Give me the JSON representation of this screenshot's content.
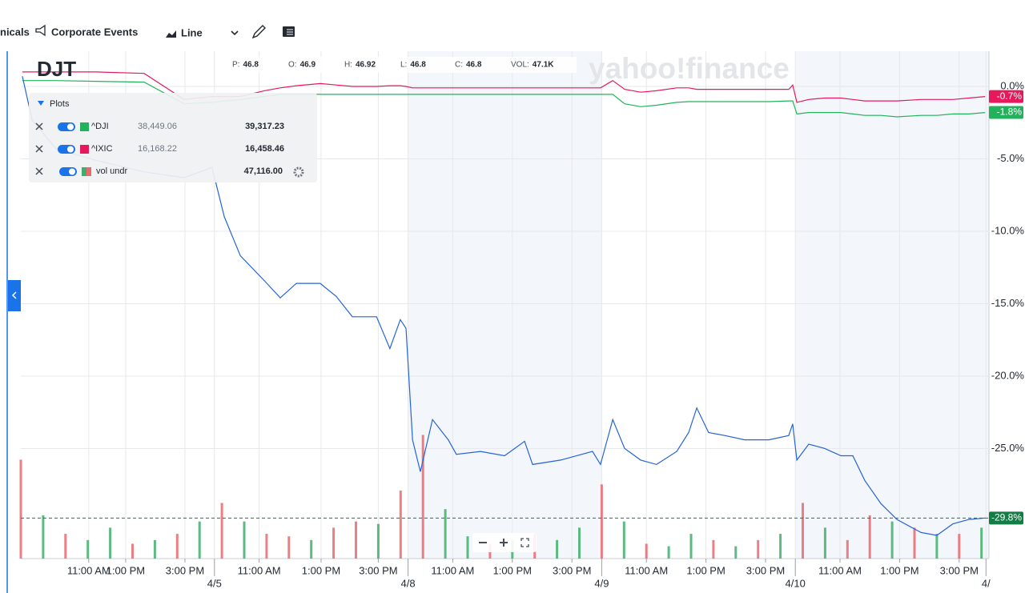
{
  "toolbar": {
    "technicals": "nicals",
    "events": "Corporate Events",
    "chart_type": "Line"
  },
  "quote": [
    {
      "label": "P:",
      "value": "46.8"
    },
    {
      "label": "O:",
      "value": "46.9"
    },
    {
      "label": "H:",
      "value": "46.92"
    },
    {
      "label": "L:",
      "value": "46.8"
    },
    {
      "label": "C:",
      "value": "46.8"
    },
    {
      "label": "VOL:",
      "value": "47.1K"
    }
  ],
  "watermark": "yahoo!finance",
  "legend": {
    "title": "Plots",
    "rows": [
      {
        "prev": "38,449.06",
        "last": "39,317.23"
      },
      {
        "prev": "16,168.22",
        "last": "16,458.46"
      },
      {
        "name": "vol undr",
        "last": "47,116.00"
      }
    ]
  },
  "chart_data": {
    "type": "line",
    "x": [
      0.05,
      0.38,
      1.18,
      2.53,
      4.14,
      5.48,
      6.42,
      6.83,
      7.37,
      8.17,
      8.71,
      9.25,
      10.05,
      10.59,
      11.13,
      11.94,
      12.39,
      12.74,
      12.93,
      13.15,
      13.41,
      13.82,
      14.35,
      14.62,
      15.43,
      16.24,
      16.91,
      17.18,
      18.12,
      19.19,
      19.46,
      19.87,
      20.27,
      20.81,
      21.34,
      22.02,
      22.42,
      22.69,
      23.09,
      23.63,
      24.3,
      25.11,
      25.78,
      25.91,
      26.05,
      26.45,
      26.99,
      27.53,
      27.93,
      28.33,
      28.87,
      29.41,
      30.22,
      30.75,
      31.29,
      31.83,
      32.37
    ],
    "series": [
      {
        "name": "DJT",
        "color": "#2563d9",
        "last_label": "-29.8%",
        "badge_color": "#127d45",
        "values": [
          0.7,
          -2.3,
          -4.3,
          -5.1,
          -5.9,
          -6.3,
          -5.6,
          -9.0,
          -11.7,
          -13.4,
          -14.6,
          -13.6,
          -13.6,
          -14.5,
          -15.9,
          -15.9,
          -18.1,
          -16.1,
          -16.7,
          -24.4,
          -26.6,
          -23.0,
          -24.4,
          -25.4,
          -25.2,
          -25.5,
          -24.5,
          -26.1,
          -25.8,
          -25.2,
          -26.1,
          -23.0,
          -25.0,
          -25.8,
          -26.1,
          -25.2,
          -23.9,
          -22.2,
          -23.9,
          -24.1,
          -24.4,
          -24.4,
          -24.1,
          -23.3,
          -25.8,
          -24.7,
          -25.0,
          -25.5,
          -25.5,
          -27.2,
          -28.8,
          -29.9,
          -30.8,
          -31.0,
          -30.2,
          -29.9,
          -29.8
        ]
      },
      {
        "name": "^DJI",
        "color": "#21b35b",
        "last_label": "-1.8%",
        "badge_color": "#21b35b",
        "values": [
          0.4,
          0.4,
          0.4,
          0.35,
          0.3,
          -1.2,
          -1.1,
          -1.0,
          -0.9,
          -0.7,
          -0.55,
          -0.55,
          -0.55,
          -0.55,
          -0.55,
          -0.55,
          -0.55,
          -0.55,
          -0.55,
          -0.55,
          -0.55,
          -0.55,
          -0.55,
          -0.55,
          -0.55,
          -0.55,
          -0.55,
          -0.55,
          -0.55,
          -0.55,
          -0.55,
          -0.55,
          -1.2,
          -1.4,
          -1.3,
          -1.1,
          -1.05,
          -1.05,
          -1.05,
          -1.05,
          -1.05,
          -1.05,
          -1.0,
          -1.0,
          -1.9,
          -1.8,
          -1.8,
          -1.8,
          -1.9,
          -2.0,
          -2.0,
          -2.1,
          -2.0,
          -2.0,
          -1.9,
          -1.9,
          -1.8
        ]
      },
      {
        "name": "^IXIC",
        "color": "#e5195c",
        "last_label": "-0.7%",
        "badge_color": "#e5195c",
        "values": [
          1.0,
          1.0,
          1.0,
          1.0,
          0.9,
          -0.9,
          -0.7,
          -0.7,
          -0.7,
          -0.3,
          -0.1,
          0.05,
          0.2,
          0.1,
          0.0,
          0.0,
          0.05,
          0.05,
          0.0,
          -0.1,
          -0.1,
          -0.1,
          -0.1,
          -0.1,
          -0.1,
          -0.1,
          -0.1,
          -0.1,
          -0.1,
          -0.1,
          -0.1,
          0.4,
          -0.2,
          -0.4,
          -0.3,
          -0.1,
          -0.1,
          -0.2,
          -0.2,
          -0.2,
          -0.2,
          -0.2,
          -0.2,
          0.1,
          -1.1,
          -0.9,
          -0.8,
          -0.8,
          -0.9,
          -1.0,
          -1.0,
          -1.0,
          -0.9,
          -0.9,
          -0.9,
          -0.8,
          -0.7
        ]
      }
    ],
    "xlim": [
      0,
      32.5
    ],
    "xticks": [
      {
        "value": 2.28,
        "label": "11:00 AM"
      },
      {
        "value": 3.52,
        "label": "1:00 PM"
      },
      {
        "value": 5.51,
        "label": "3:00 PM"
      },
      {
        "value": 6.5,
        "label": "4/5"
      },
      {
        "value": 8.0,
        "label": "11:00 AM"
      },
      {
        "value": 10.08,
        "label": "1:00 PM"
      },
      {
        "value": 12.0,
        "label": "3:00 PM"
      },
      {
        "value": 13.0,
        "label": "4/8"
      },
      {
        "value": 14.5,
        "label": "11:00 AM"
      },
      {
        "value": 16.5,
        "label": "1:00 PM"
      },
      {
        "value": 18.5,
        "label": "3:00 PM"
      },
      {
        "value": 19.5,
        "label": "4/9"
      },
      {
        "value": 21.0,
        "label": "11:00 AM"
      },
      {
        "value": 23.0,
        "label": "1:00 PM"
      },
      {
        "value": 25.0,
        "label": "3:00 PM"
      },
      {
        "value": 26.0,
        "label": "4/10"
      },
      {
        "value": 27.5,
        "label": "11:00 AM"
      },
      {
        "value": 29.5,
        "label": "1:00 PM"
      },
      {
        "value": 31.5,
        "label": "3:00 PM"
      },
      {
        "value": 32.4,
        "label": "4/"
      }
    ],
    "ylim": [
      -32.6,
      2.43
    ],
    "yticks": [
      {
        "value": 0,
        "label": "0.0%"
      },
      {
        "value": -5,
        "label": "-5.0%"
      },
      {
        "value": -10,
        "label": "-10.0%"
      },
      {
        "value": -15,
        "label": "-15.0%"
      },
      {
        "value": -20,
        "label": "-20.0%"
      },
      {
        "value": -25,
        "label": "-25.0%"
      }
    ],
    "grid": true,
    "volume": {
      "ylim": [
        0,
        110
      ],
      "x": [
        0,
        0.75,
        1.5,
        2.25,
        3,
        3.75,
        4.5,
        5.25,
        6,
        6.75,
        7.5,
        8.25,
        9,
        9.75,
        10.5,
        11.25,
        12,
        12.75,
        13.5,
        14.25,
        15,
        15.75,
        16.5,
        17.25,
        18,
        18.75,
        19.5,
        20.25,
        21,
        21.75,
        22.5,
        23.25,
        24,
        24.75,
        25.5,
        26.25,
        27,
        27.75,
        28.5,
        29.25,
        30,
        30.75,
        31.5,
        32.25
      ],
      "values": [
        80,
        35,
        20,
        15,
        25,
        12,
        15,
        20,
        30,
        45,
        30,
        20,
        18,
        15,
        25,
        30,
        28,
        55,
        100,
        40,
        18,
        12,
        15,
        20,
        15,
        25,
        60,
        30,
        12,
        10,
        20,
        15,
        10,
        15,
        20,
        45,
        25,
        15,
        35,
        30,
        25,
        20,
        20,
        25
      ],
      "colors": [
        "#e8686e",
        "#3fae6c",
        "#e8686e",
        "#3fae6c",
        "#3fae6c",
        "#e8686e",
        "#3fae6c",
        "#e8686e",
        "#3fae6c",
        "#e8686e",
        "#3fae6c",
        "#e8686e",
        "#e8686e",
        "#3fae6c",
        "#e8686e",
        "#e8686e",
        "#3fae6c",
        "#e8686e",
        "#e8686e",
        "#3fae6c",
        "#3fae6c",
        "#e8686e",
        "#3fae6c",
        "#e8686e",
        "#3fae6c",
        "#3fae6c",
        "#e8686e",
        "#3fae6c",
        "#e8686e",
        "#3fae6c",
        "#3fae6c",
        "#e8686e",
        "#3fae6c",
        "#e8686e",
        "#3fae6c",
        "#e8686e",
        "#3fae6c",
        "#e8686e",
        "#e8686e",
        "#3fae6c",
        "#e8686e",
        "#3fae6c",
        "#e8686e",
        "#3fae6c"
      ]
    }
  }
}
